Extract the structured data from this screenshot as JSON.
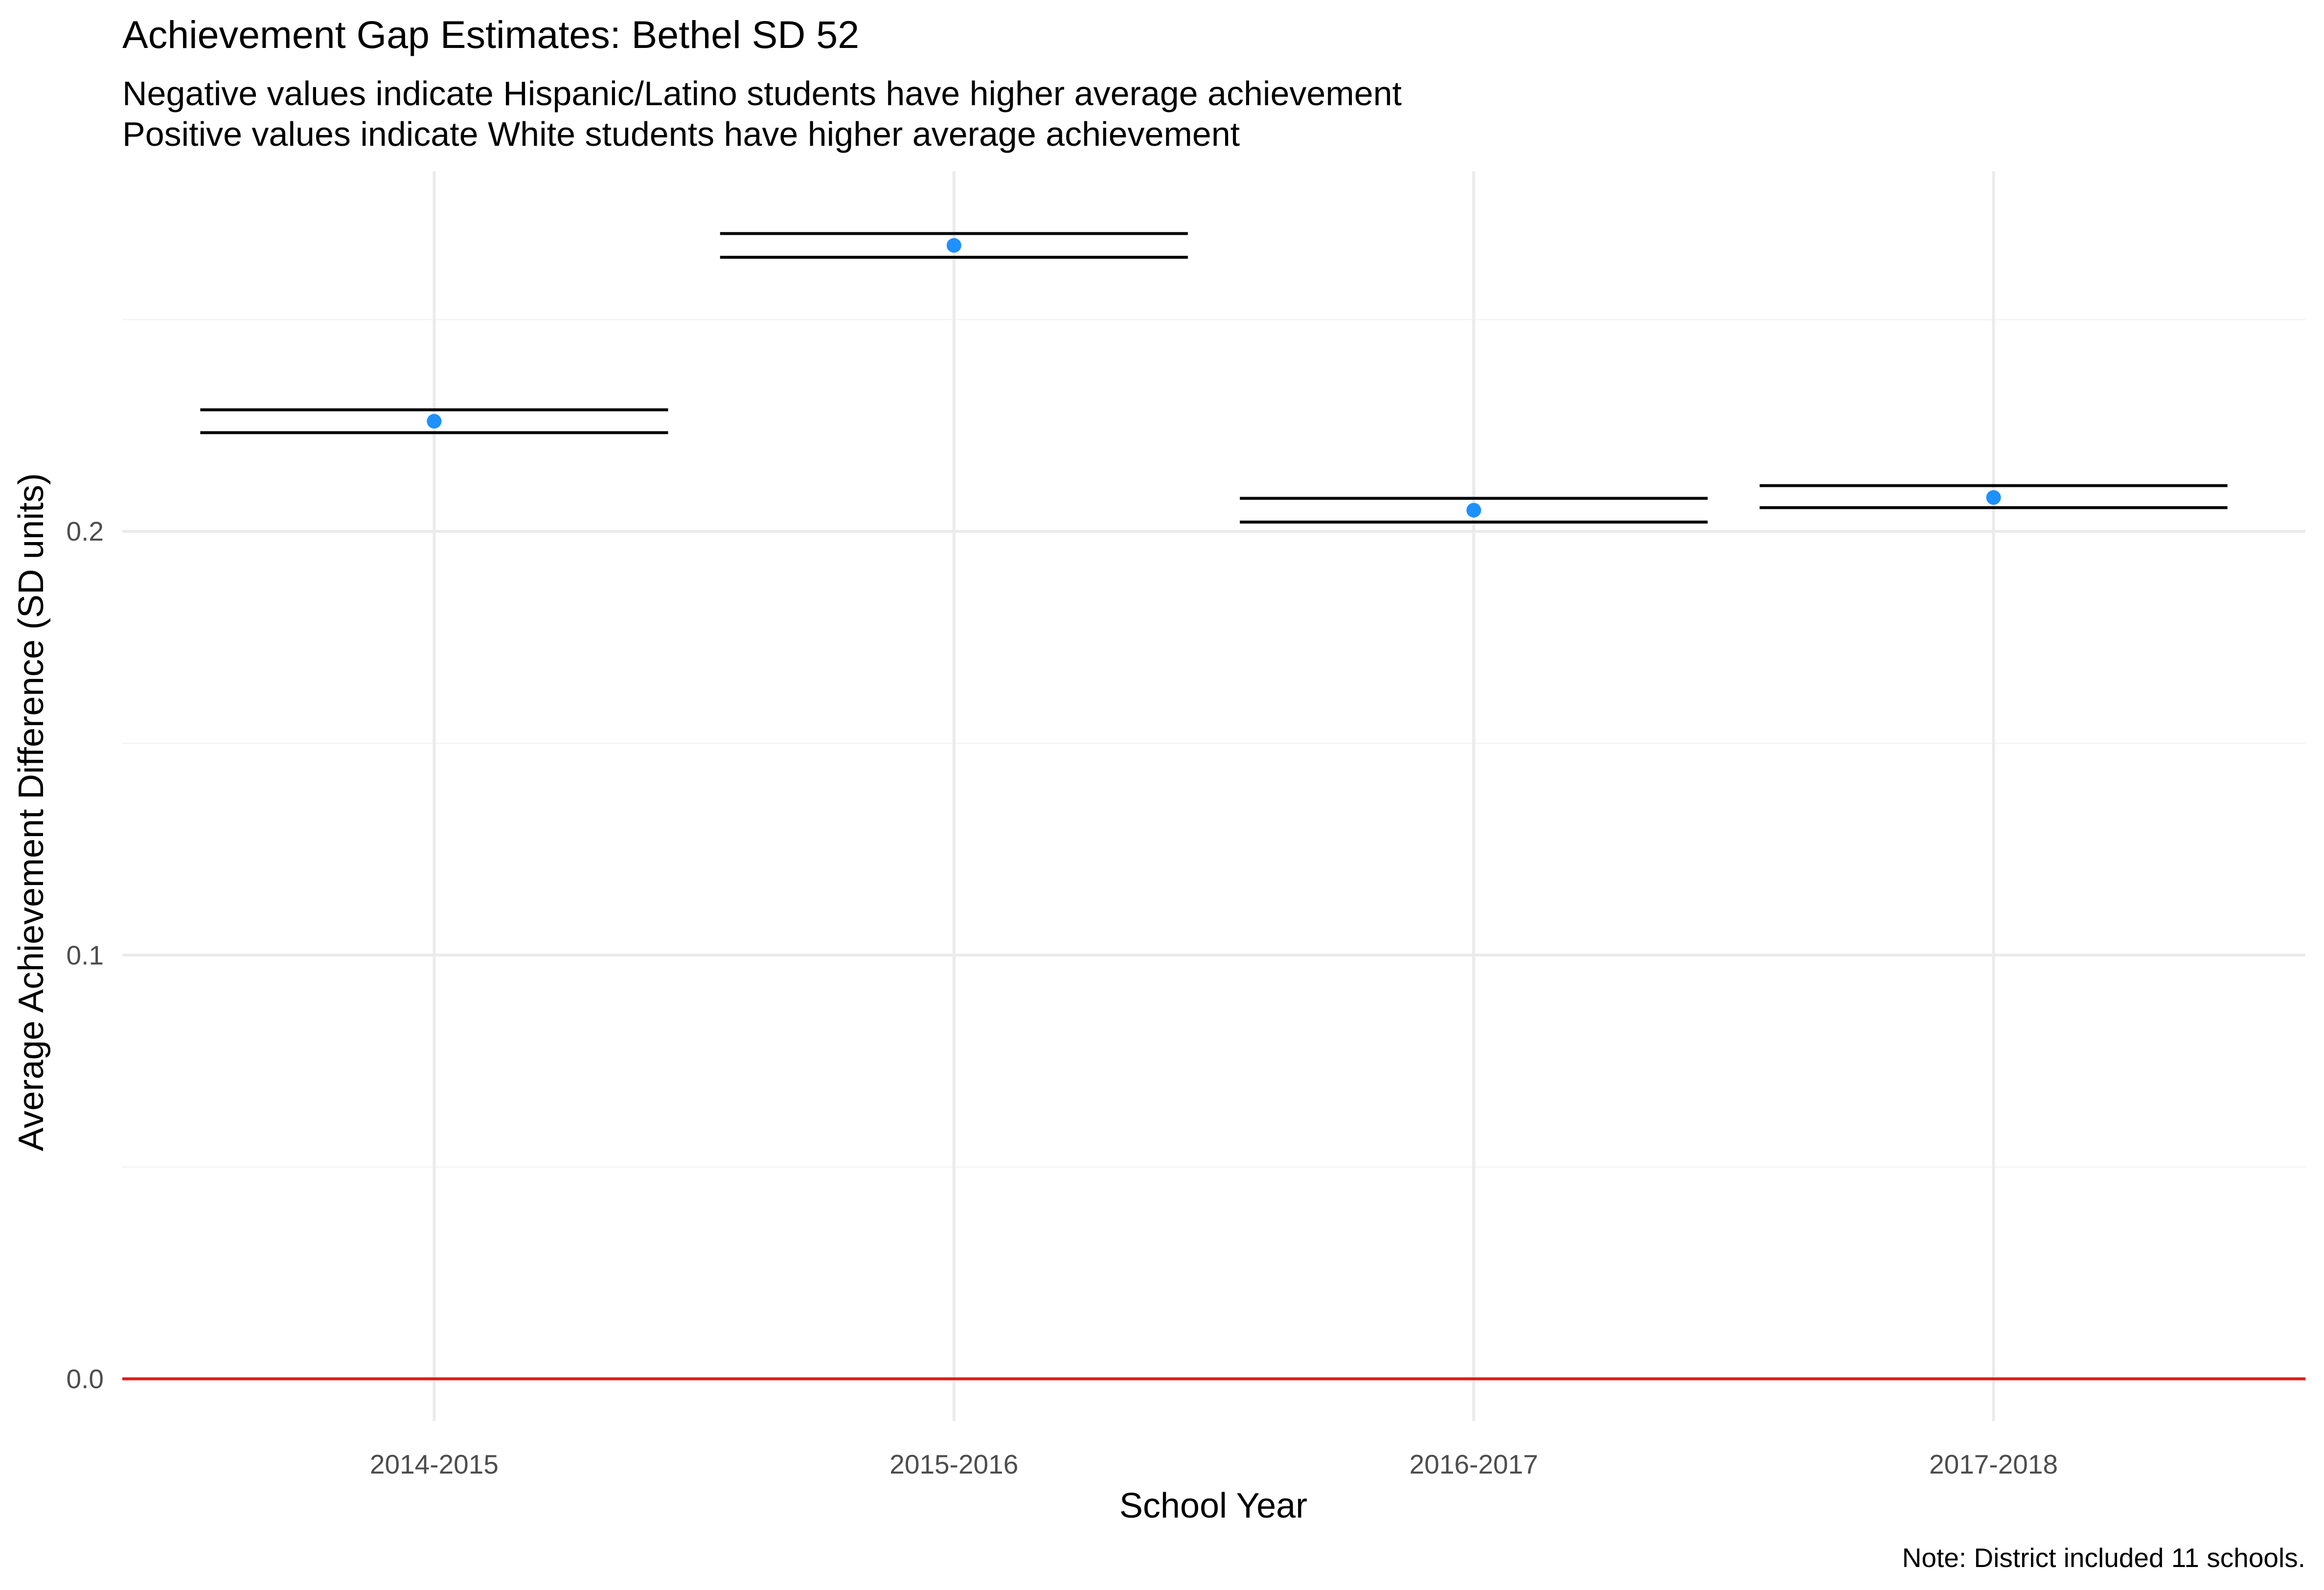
{
  "chart_data": {
    "type": "scatter",
    "title": "Achievement Gap Estimates: Bethel SD 52",
    "subtitle_lines": [
      "Negative values indicate Hispanic/Latino students have higher average achievement",
      "Positive values indicate White students have higher average achievement"
    ],
    "xlabel": "School Year",
    "ylabel": "Average Achievement Difference (SD units)",
    "caption": "Note: District included 11 schools.",
    "categories": [
      "2014-2015",
      "2015-2016",
      "2016-2017",
      "2017-2018"
    ],
    "values": [
      0.226,
      0.2675,
      0.205,
      0.208
    ],
    "interval_upper": [
      0.2287,
      0.2703,
      0.2078,
      0.2108
    ],
    "interval_lower": [
      0.2233,
      0.2647,
      0.2022,
      0.2056
    ],
    "ylim": [
      -0.01,
      0.285
    ],
    "yticks": [
      0.0,
      0.1,
      0.2
    ],
    "ytick_labels": [
      "0.0",
      "0.1",
      "0.2"
    ],
    "minor_yticks": [
      0.05,
      0.15,
      0.25
    ],
    "reference_line": 0.0,
    "grid": true,
    "colors": {
      "point": "#1e90ff",
      "interval": "#000000",
      "reference_line": "#e31a1c",
      "grid_major": "#ebebeb",
      "grid_minor": "#f5f5f5"
    }
  }
}
